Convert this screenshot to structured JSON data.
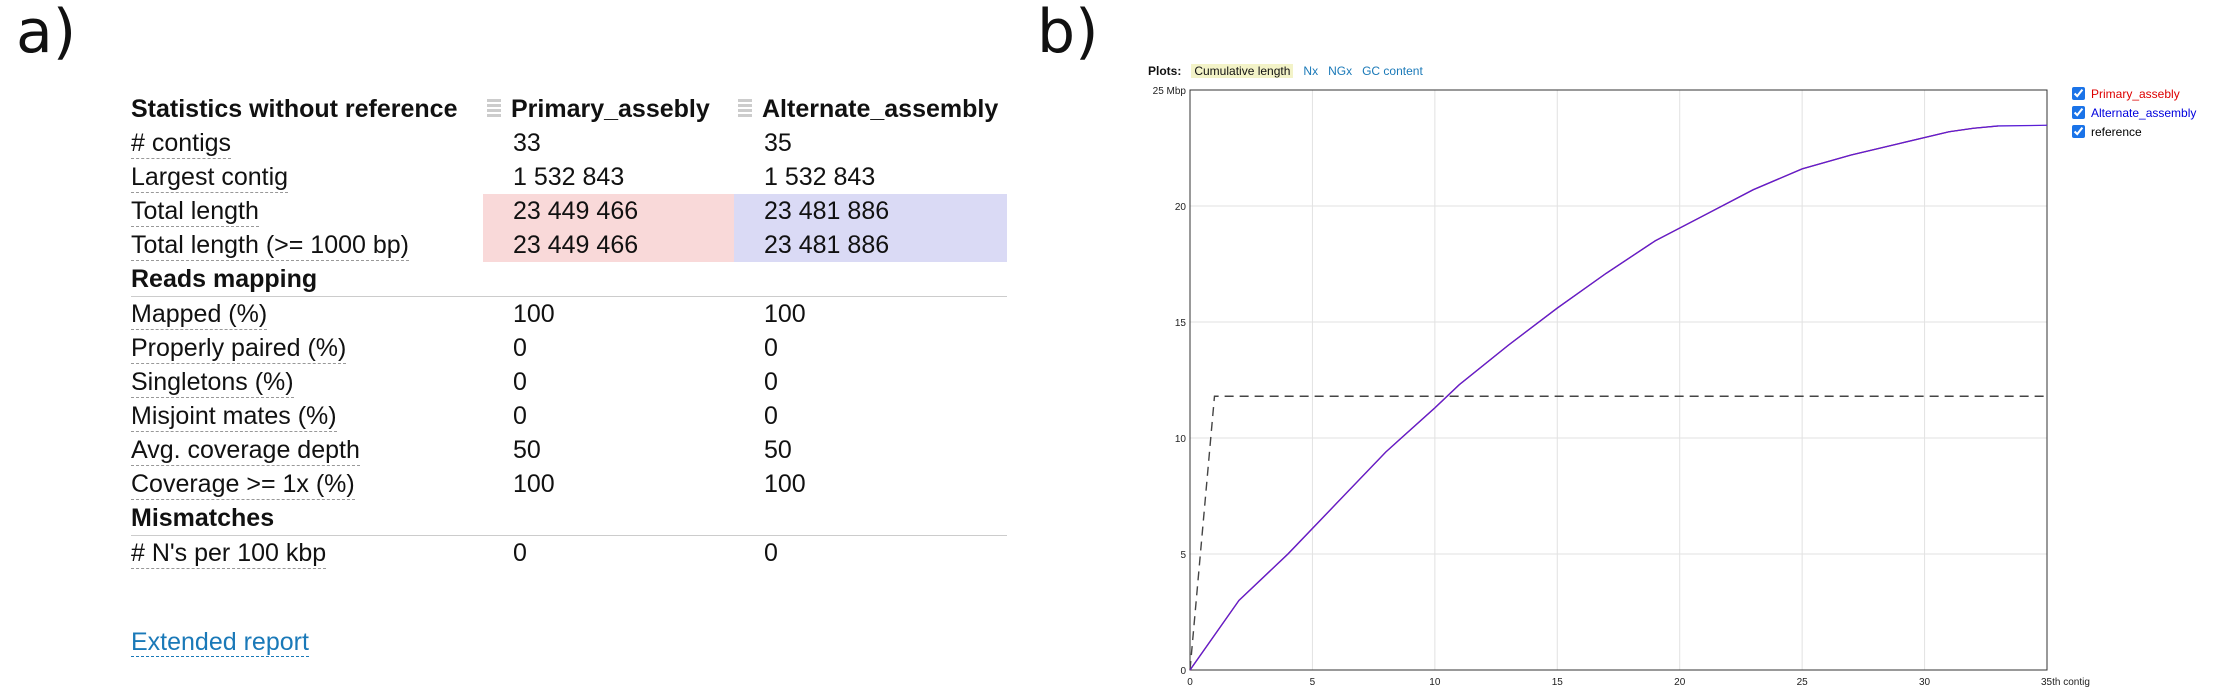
{
  "panels": {
    "a": "a)",
    "b": "b)"
  },
  "table": {
    "header": {
      "title": "Statistics without reference",
      "assemblies": [
        "Primary_assebly",
        "Alternate_assembly"
      ]
    },
    "rows": [
      {
        "metric": "# contigs",
        "values": [
          "33",
          "35"
        ]
      },
      {
        "metric": "Largest contig",
        "values": [
          "1 532 843",
          "1 532 843"
        ]
      },
      {
        "metric": "Total length",
        "values": [
          "23 449 466",
          "23 481 886"
        ],
        "highlight": true
      },
      {
        "metric": "Total length (>= 1000 bp)",
        "values": [
          "23 449 466",
          "23 481 886"
        ],
        "highlight": true
      }
    ],
    "sections": [
      {
        "title": "Reads mapping",
        "rows": [
          {
            "metric": "Mapped (%)",
            "values": [
              "100",
              "100"
            ]
          },
          {
            "metric": "Properly paired (%)",
            "values": [
              "0",
              "0"
            ]
          },
          {
            "metric": "Singletons (%)",
            "values": [
              "0",
              "0"
            ]
          },
          {
            "metric": "Misjoint mates (%)",
            "values": [
              "0",
              "0"
            ]
          },
          {
            "metric": "Avg. coverage depth",
            "values": [
              "50",
              "50"
            ]
          },
          {
            "metric": "Coverage >= 1x (%)",
            "values": [
              "100",
              "100"
            ]
          }
        ]
      },
      {
        "title": "Mismatches",
        "rows": [
          {
            "metric": "# N's per 100 kbp",
            "values": [
              "0",
              "0"
            ]
          }
        ]
      }
    ],
    "extended_link": "Extended report",
    "colors": {
      "highlight_primary": "#f9d9d9",
      "highlight_alternate": "#dadaf5",
      "link": "#1a79b8"
    }
  },
  "plots": {
    "label": "Plots:",
    "tabs": [
      {
        "label": "Cumulative length",
        "active": true
      },
      {
        "label": "Nx",
        "active": false
      },
      {
        "label": "NGx",
        "active": false
      },
      {
        "label": "GC content",
        "active": false
      }
    ],
    "legend": [
      {
        "label": "Primary_assebly",
        "color": "#dd0000",
        "checked": true
      },
      {
        "label": "Alternate_assembly",
        "color": "#0000dd",
        "checked": true
      },
      {
        "label": "reference",
        "color": "#000000",
        "checked": true
      }
    ]
  },
  "chart_data": {
    "type": "line",
    "title": "Cumulative length",
    "xlabel": "",
    "ylabel": "",
    "xlim": [
      0,
      35
    ],
    "ylim": [
      0,
      25
    ],
    "x_ticks": [
      "0",
      "5",
      "10",
      "15",
      "20",
      "25",
      "30",
      "35th contig"
    ],
    "y_ticks": [
      "0",
      "5",
      "10",
      "15",
      "20",
      "25 Mbp"
    ],
    "grid": true,
    "legend_position": "top-right",
    "series": [
      {
        "name": "Primary_assebly",
        "color": "#dd0000",
        "style": "solid",
        "x": [
          0,
          2,
          4,
          6,
          8,
          10,
          11,
          13,
          15,
          17,
          19,
          21,
          23,
          25,
          27,
          29,
          31,
          32,
          33
        ],
        "y": [
          0,
          3.0,
          5.0,
          7.2,
          9.4,
          11.3,
          12.3,
          14.0,
          15.6,
          17.1,
          18.5,
          19.6,
          20.7,
          21.6,
          22.2,
          22.7,
          23.2,
          23.35,
          23.45
        ]
      },
      {
        "name": "Alternate_assembly",
        "color": "#0000dd",
        "style": "solid",
        "x": [
          0,
          2,
          4,
          6,
          8,
          10,
          11,
          13,
          15,
          17,
          19,
          21,
          23,
          25,
          27,
          29,
          31,
          32,
          33,
          35
        ],
        "y": [
          0,
          3.0,
          5.0,
          7.2,
          9.4,
          11.3,
          12.3,
          14.0,
          15.6,
          17.1,
          18.5,
          19.6,
          20.7,
          21.6,
          22.2,
          22.7,
          23.2,
          23.35,
          23.45,
          23.48
        ]
      },
      {
        "name": "reference",
        "color": "#444444",
        "style": "dashed",
        "x": [
          0,
          1,
          35
        ],
        "y": [
          0,
          11.8,
          11.8
        ]
      }
    ]
  }
}
